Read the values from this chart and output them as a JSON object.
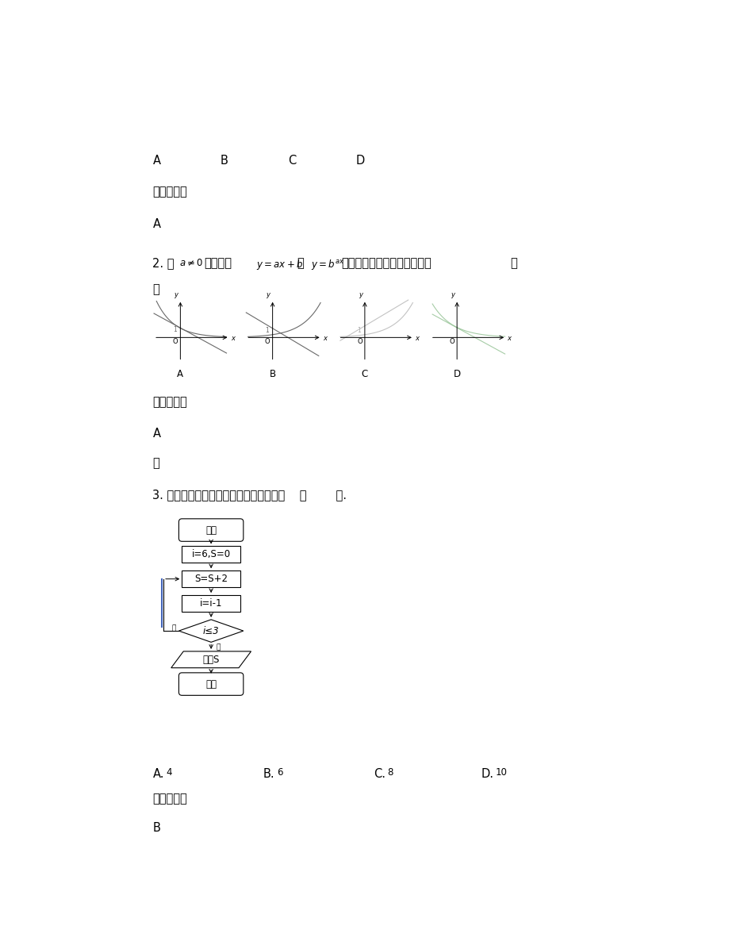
{
  "bg_color": "#ffffff",
  "page_width": 9.2,
  "page_height": 11.91,
  "line1_options": [
    "A",
    "B",
    "C",
    "D"
  ],
  "ref_answer_label": "参考答案：",
  "answer1": "A",
  "answer2": "A",
  "omit_text": "略",
  "q3_text": "3. 如图所示，该程序运行后输出的结果为    （        ）.",
  "flowchart": {
    "start_text": "开始",
    "init_text": "i=6,S=0",
    "proc1_text": "S=S+2",
    "proc2_text": "i=i-1",
    "decision_text": "i≤3",
    "output_text": "输出S",
    "end_text": "结束"
  },
  "q3_options_labels": [
    "A.",
    "B.",
    "C.",
    "D."
  ],
  "q3_options_values": [
    "4",
    "6",
    "8",
    "10"
  ],
  "ref_answer_label3": "参考答案：",
  "answer3": "B",
  "graph_labels": [
    "A",
    "B",
    "C",
    "D"
  ]
}
